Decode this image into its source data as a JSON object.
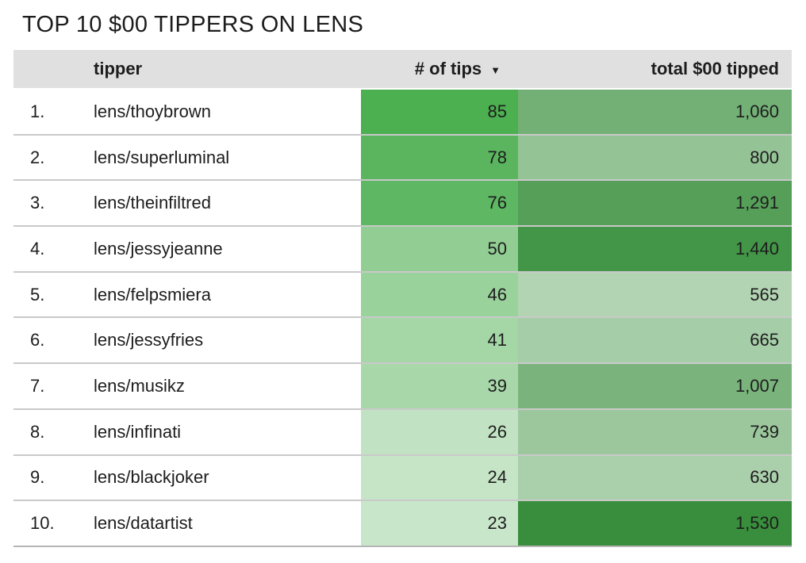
{
  "title": "TOP 10 $00 TIPPERS ON LENS",
  "header": {
    "rank_label": "",
    "tipper_label": "tipper",
    "tips_label": "# of tips",
    "sort_icon": "▼",
    "total_label": "total $00 tipped"
  },
  "sort": {
    "column": "# of tips",
    "direction": "descending"
  },
  "colors": {
    "header_bg": "#e0e0e0",
    "row_border": "#c9c9c9",
    "text": "#1d1d1d",
    "heatmap_low": "#c8e6c9",
    "heatmap_high": "#388e3c"
  },
  "rows": [
    {
      "rank": "1.",
      "tipper": "lens/thoybrown",
      "tips": "85",
      "total": "1,060",
      "tips_bg": "#4caf50",
      "total_bg": "#73b076"
    },
    {
      "rank": "2.",
      "tipper": "lens/superluminal",
      "tips": "78",
      "total": "800",
      "tips_bg": "#5ab55e",
      "total_bg": "#94c396"
    },
    {
      "rank": "3.",
      "tipper": "lens/theinfiltred",
      "tips": "76",
      "total": "1,291",
      "tips_bg": "#5eb762",
      "total_bg": "#569f59"
    },
    {
      "rank": "4.",
      "tipper": "lens/jessyjeanne",
      "tips": "50",
      "total": "1,440",
      "tips_bg": "#92ce94",
      "total_bg": "#439547"
    },
    {
      "rank": "5.",
      "tipper": "lens/felpsmiera",
      "tips": "46",
      "total": "565",
      "tips_bg": "#9ad29c",
      "total_bg": "#b2d4b3"
    },
    {
      "rank": "6.",
      "tipper": "lens/jessyfries",
      "tips": "41",
      "total": "665",
      "tips_bg": "#a4d6a6",
      "total_bg": "#a5cda7"
    },
    {
      "rank": "7.",
      "tipper": "lens/musikz",
      "tips": "39",
      "total": "1,007",
      "tips_bg": "#a8d8aa",
      "total_bg": "#7ab47c"
    },
    {
      "rank": "8.",
      "tipper": "lens/infinati",
      "tips": "26",
      "total": "739",
      "tips_bg": "#c2e3c3",
      "total_bg": "#9cc79d"
    },
    {
      "rank": "9.",
      "tipper": "lens/blackjoker",
      "tips": "24",
      "total": "630",
      "tips_bg": "#c6e5c7",
      "total_bg": "#aacfab"
    },
    {
      "rank": "10.",
      "tipper": "lens/datartist",
      "tips": "23",
      "total": "1,530",
      "tips_bg": "#c8e6c9",
      "total_bg": "#388e3c"
    }
  ],
  "chart_data": {
    "type": "table",
    "title": "TOP 10 $00 TIPPERS ON LENS",
    "columns": [
      "rank",
      "tipper",
      "# of tips",
      "total $00 tipped"
    ],
    "sorted_by": "# of tips descending",
    "rows": [
      {
        "rank": 1,
        "tipper": "lens/thoybrown",
        "tips": 85,
        "total": 1060
      },
      {
        "rank": 2,
        "tipper": "lens/superluminal",
        "tips": 78,
        "total": 800
      },
      {
        "rank": 3,
        "tipper": "lens/theinfiltred",
        "tips": 76,
        "total": 1291
      },
      {
        "rank": 4,
        "tipper": "lens/jessyjeanne",
        "tips": 50,
        "total": 1440
      },
      {
        "rank": 5,
        "tipper": "lens/felpsmiera",
        "tips": 46,
        "total": 565
      },
      {
        "rank": 6,
        "tipper": "lens/jessyfries",
        "tips": 41,
        "total": 665
      },
      {
        "rank": 7,
        "tipper": "lens/musikz",
        "tips": 39,
        "total": 1007
      },
      {
        "rank": 8,
        "tipper": "lens/infinati",
        "tips": 26,
        "total": 739
      },
      {
        "rank": 9,
        "tipper": "lens/blackjoker",
        "tips": 24,
        "total": 630
      },
      {
        "rank": 10,
        "tipper": "lens/datartist",
        "tips": 23,
        "total": 1530
      }
    ],
    "heatmap": {
      "tips_value_range": [
        23,
        85
      ],
      "total_value_range": [
        565,
        1530
      ],
      "color_low": "#c8e6c9",
      "color_high": "#388e3c"
    }
  }
}
